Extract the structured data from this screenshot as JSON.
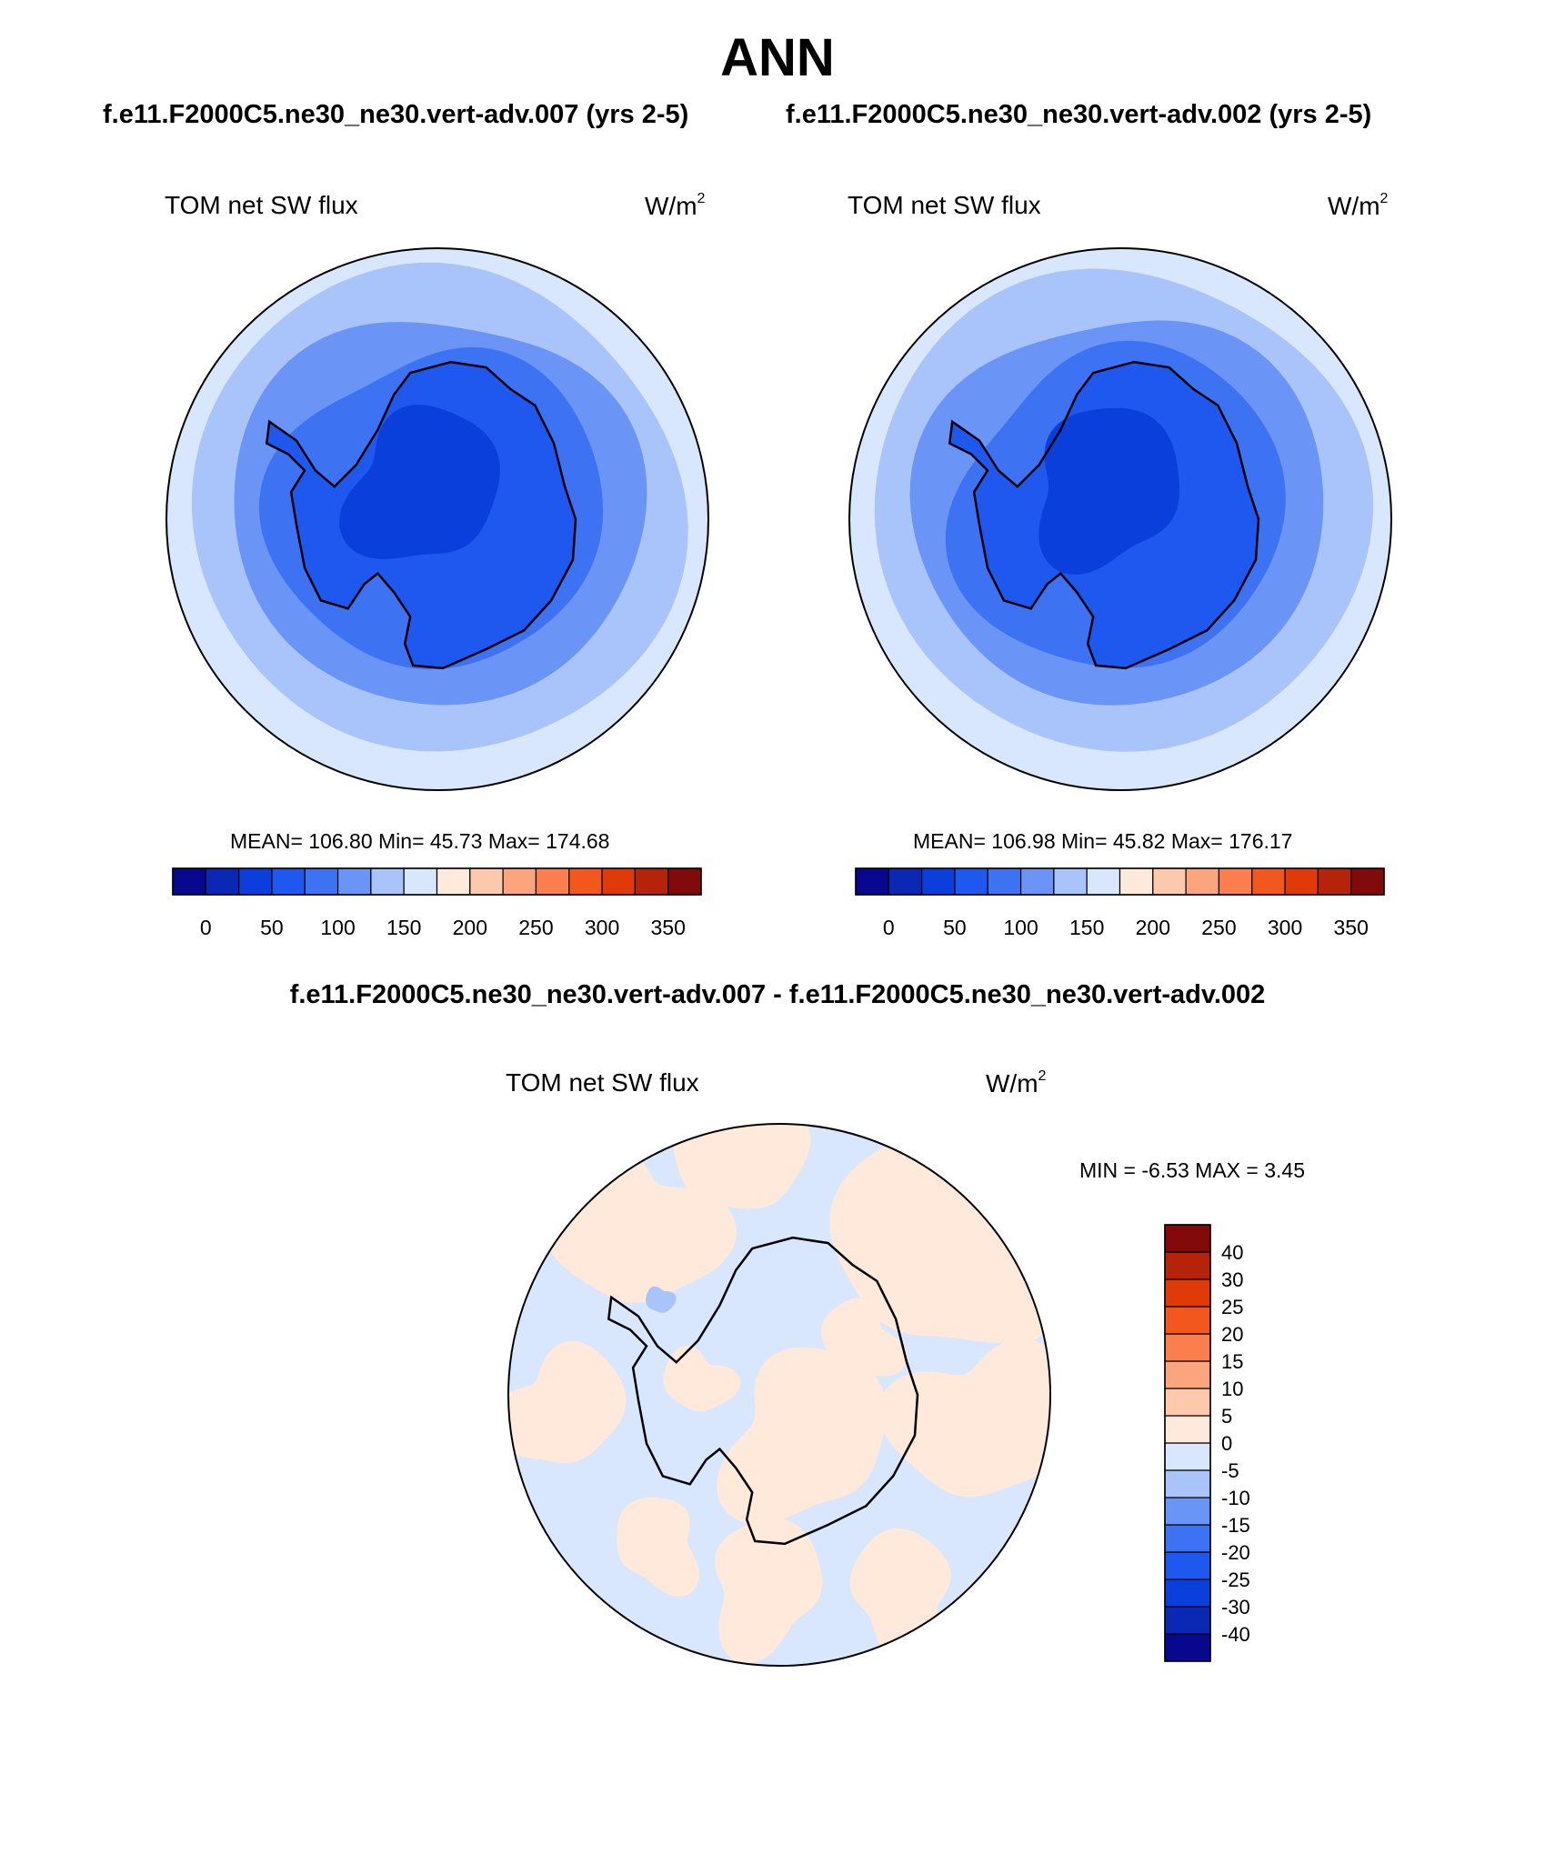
{
  "title": "ANN",
  "colors": {
    "scale": [
      "#08088e",
      "#0a28b3",
      "#0a3fdc",
      "#1f58ee",
      "#3d72f2",
      "#6a95f6",
      "#a9c4fb",
      "#d8e7fe",
      "#ffe9da",
      "#fdc9ad",
      "#fca47d",
      "#fb7e4e",
      "#f2571d",
      "#df3a07",
      "#b5240a",
      "#820a0a"
    ],
    "coast": "#000000"
  },
  "chart_data": [
    {
      "type": "heatmap",
      "panel": "test",
      "subtitle": "f.e11.F2000C5.ne30_ne30.vert-adv.007 (yrs 2-5)",
      "variable": "TOM net SW flux",
      "units": "W/m",
      "units_exp": "2",
      "projection": "south polar stereographic",
      "stats": {
        "label": "MEAN= 106.80  Min=  45.73  Max= 174.68",
        "mean": 106.8,
        "min": 45.73,
        "max": 174.68
      },
      "colorbar": {
        "orientation": "horizontal",
        "levels": [
          0,
          50,
          100,
          150,
          200,
          250,
          300,
          350
        ],
        "tick_labels": [
          "0",
          "50",
          "100",
          "150",
          "200",
          "250",
          "300",
          "350"
        ]
      }
    },
    {
      "type": "heatmap",
      "panel": "control",
      "subtitle": "f.e11.F2000C5.ne30_ne30.vert-adv.002 (yrs 2-5)",
      "variable": "TOM net SW flux",
      "units": "W/m",
      "units_exp": "2",
      "projection": "south polar stereographic",
      "stats": {
        "label": "MEAN= 106.98  Min=  45.82  Max= 176.17",
        "mean": 106.98,
        "min": 45.82,
        "max": 176.17
      },
      "colorbar": {
        "orientation": "horizontal",
        "levels": [
          0,
          50,
          100,
          150,
          200,
          250,
          300,
          350
        ],
        "tick_labels": [
          "0",
          "50",
          "100",
          "150",
          "200",
          "250",
          "300",
          "350"
        ]
      }
    },
    {
      "type": "heatmap",
      "panel": "difference",
      "subtitle": "f.e11.F2000C5.ne30_ne30.vert-adv.007 - f.e11.F2000C5.ne30_ne30.vert-adv.002",
      "variable": "TOM net SW flux",
      "units": "W/m",
      "units_exp": "2",
      "projection": "south polar stereographic",
      "stats": {
        "label": "MIN =  -6.53 MAX =   3.45",
        "min": -6.53,
        "max": 3.45
      },
      "colorbar": {
        "orientation": "vertical",
        "levels": [
          40,
          30,
          25,
          20,
          15,
          10,
          5,
          0,
          -5,
          -10,
          -15,
          -20,
          -25,
          -30,
          -40
        ],
        "tick_labels": [
          "40",
          "30",
          "25",
          "20",
          "15",
          "10",
          "5",
          "0",
          "-5",
          "-10",
          "-15",
          "-20",
          "-25",
          "-30",
          "-40"
        ]
      }
    }
  ]
}
